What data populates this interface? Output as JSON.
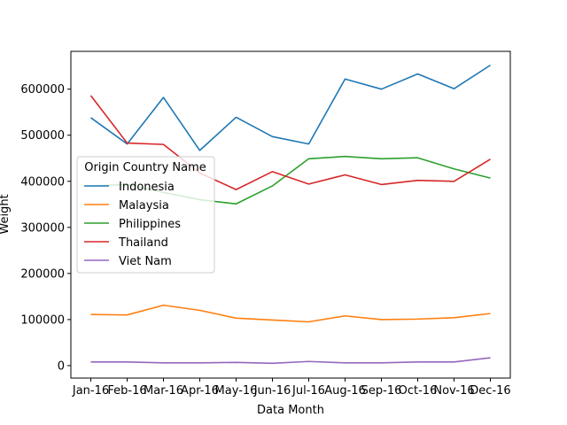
{
  "chart_data": {
    "type": "line",
    "title": "",
    "xlabel": "Data Month",
    "ylabel": "Weight",
    "categories": [
      "Jan-16",
      "Feb-16",
      "Mar-16",
      "Apr-16",
      "May-16",
      "Jun-16",
      "Jul-16",
      "Aug-16",
      "Sep-16",
      "Oct-16",
      "Nov-16",
      "Dec-16"
    ],
    "ylim": [
      -27000,
      682000
    ],
    "yticks": [
      0,
      100000,
      200000,
      300000,
      400000,
      500000,
      600000
    ],
    "ytick_labels": [
      "0",
      "100000",
      "200000",
      "300000",
      "400000",
      "500000",
      "600000"
    ],
    "grid": false,
    "legend": {
      "title": "Origin Country Name",
      "placement": "center-left"
    },
    "series": [
      {
        "name": "Indonesia",
        "color": "#1f77b4",
        "values": [
          538000,
          481000,
          582000,
          467000,
          539000,
          497000,
          481000,
          622000,
          600000,
          633000,
          601000,
          652000
        ]
      },
      {
        "name": "Malaysia",
        "color": "#ff7f0e",
        "values": [
          111000,
          110000,
          131000,
          120000,
          103000,
          99000,
          95000,
          108000,
          100000,
          101000,
          104000,
          113000
        ]
      },
      {
        "name": "Philippines",
        "color": "#2ca02c",
        "values": [
          390000,
          393000,
          376000,
          360000,
          351000,
          390000,
          449000,
          454000,
          449000,
          451000,
          427000,
          407000
        ]
      },
      {
        "name": "Thailand",
        "color": "#d62728",
        "values": [
          586000,
          483000,
          480000,
          418000,
          382000,
          421000,
          394000,
          414000,
          393000,
          402000,
          400000,
          448000
        ]
      },
      {
        "name": "Viet Nam",
        "color": "#9467bd",
        "values": [
          8000,
          8000,
          6000,
          6000,
          7000,
          5000,
          9000,
          6000,
          6000,
          8000,
          8000,
          17000
        ]
      }
    ]
  }
}
